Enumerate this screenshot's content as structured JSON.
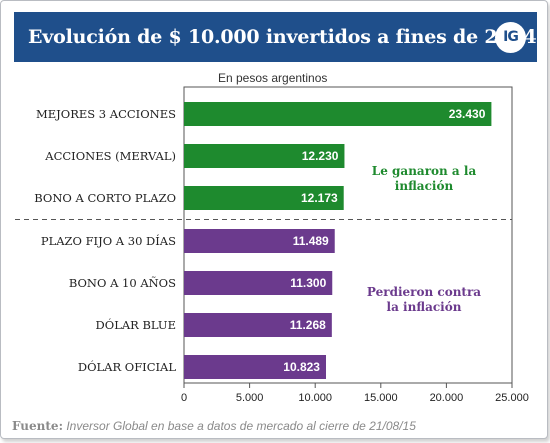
{
  "header": {
    "title": "Evolución de $ 10.000 invertidos a fines de 2014",
    "logo_text": "IG"
  },
  "subtitle": "En pesos argentinos",
  "source": {
    "label": "Fuente:",
    "text": "Inversor Global en base a datos de mercado al cierre de 21/08/15"
  },
  "colors": {
    "header_bg": "#1f4f8b",
    "green": "#1e8a2e",
    "purple": "#6b3a8d",
    "axis": "#555555",
    "divider": "#555555"
  },
  "chart_data": {
    "type": "bar",
    "orientation": "horizontal",
    "categories": [
      "MEJORES 3 ACCIONES",
      "ACCIONES (MERVAL)",
      "BONO A CORTO PLAZO",
      "PLAZO FIJO A 30 DÍAS",
      "BONO A 10 AÑOS",
      "DÓLAR BLUE",
      "DÓLAR OFICIAL"
    ],
    "values": [
      23430,
      12230,
      12173,
      11489,
      11300,
      11268,
      10823
    ],
    "value_labels": [
      "23.430",
      "12.230",
      "12.173",
      "11.489",
      "11.300",
      "11.268",
      "10.823"
    ],
    "groups": [
      "green",
      "green",
      "green",
      "purple",
      "purple",
      "purple",
      "purple"
    ],
    "xlim": [
      0,
      25000
    ],
    "xticks": [
      0,
      5000,
      10000,
      15000,
      20000,
      25000
    ],
    "xtick_labels": [
      "0",
      "5.000",
      "10.000",
      "15.000",
      "20.000",
      "25.000"
    ],
    "annotations": [
      {
        "lines": [
          "Le ganaron a la",
          "inflación"
        ],
        "group": "green"
      },
      {
        "lines": [
          "Perdieron contra",
          "la inflación"
        ],
        "group": "purple"
      }
    ],
    "grid": false
  }
}
